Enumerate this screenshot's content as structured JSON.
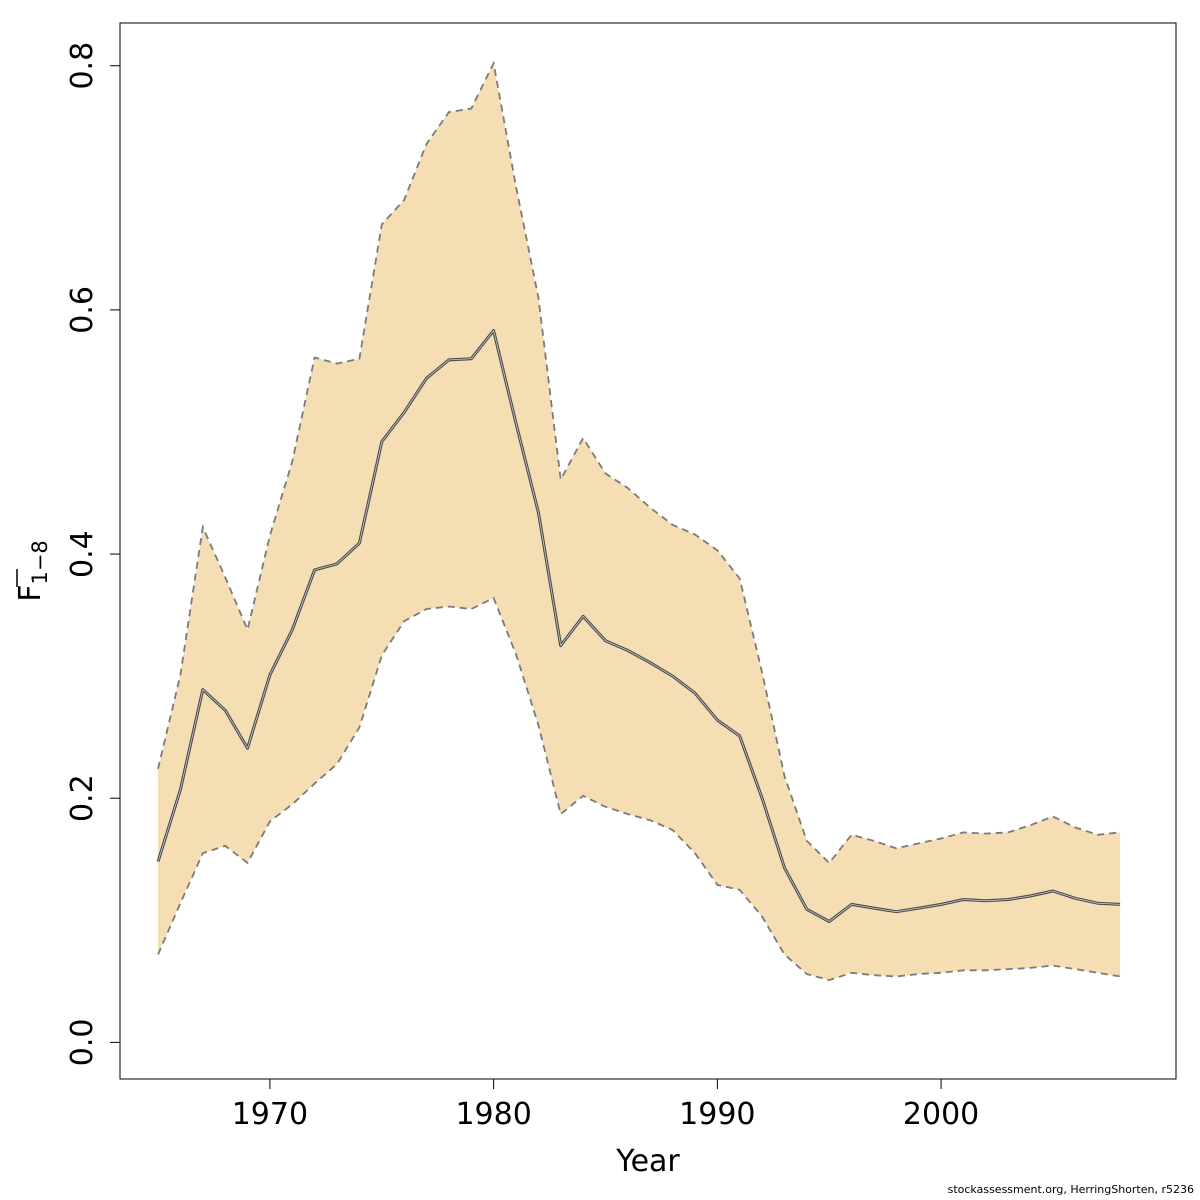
{
  "chart_data": {
    "type": "area",
    "xlabel": "Year",
    "ylabel_main": "F",
    "ylabel_sub": "1−8",
    "xlim": [
      1963.3,
      2010.5
    ],
    "ylim": [
      -0.03,
      0.835
    ],
    "xticks": [
      1970,
      1980,
      1990,
      2000
    ],
    "yticks": [
      0.0,
      0.2,
      0.4,
      0.6,
      0.8
    ],
    "ytick_labels": [
      "0.0",
      "0.2",
      "0.4",
      "0.6",
      "0.8"
    ],
    "band_color": "#f5deb3",
    "line_color": "#4a4a4a",
    "bound_color": "#7a7a7a",
    "grid": false,
    "x": [
      1965,
      1966,
      1967,
      1968,
      1969,
      1970,
      1971,
      1972,
      1973,
      1974,
      1975,
      1976,
      1977,
      1978,
      1979,
      1980,
      1981,
      1982,
      1983,
      1984,
      1985,
      1986,
      1987,
      1988,
      1989,
      1990,
      1991,
      1992,
      1993,
      1994,
      1995,
      1996,
      1997,
      1998,
      1999,
      2000,
      2001,
      2002,
      2003,
      2004,
      2005,
      2006,
      2007,
      2008
    ],
    "series": [
      {
        "values": [
          0.148,
          0.207,
          0.289,
          0.272,
          0.241,
          0.301,
          0.338,
          0.387,
          0.392,
          0.409,
          0.492,
          0.516,
          0.544,
          0.559,
          0.56,
          0.583,
          0.507,
          0.434,
          0.325,
          0.349,
          0.329,
          0.321,
          0.311,
          0.3,
          0.286,
          0.264,
          0.251,
          0.2,
          0.143,
          0.109,
          0.099,
          0.113,
          0.11,
          0.107,
          0.11,
          0.113,
          0.117,
          0.116,
          0.117,
          0.12,
          0.124,
          0.118,
          0.114,
          0.113
        ]
      },
      {
        "values": [
          0.224,
          0.301,
          0.422,
          0.381,
          0.338,
          0.415,
          0.476,
          0.561,
          0.556,
          0.56,
          0.67,
          0.69,
          0.736,
          0.762,
          0.765,
          0.802,
          0.701,
          0.61,
          0.461,
          0.495,
          0.466,
          0.454,
          0.438,
          0.424,
          0.416,
          0.403,
          0.38,
          0.303,
          0.218,
          0.165,
          0.147,
          0.17,
          0.165,
          0.159,
          0.163,
          0.167,
          0.172,
          0.171,
          0.172,
          0.178,
          0.185,
          0.176,
          0.17,
          0.172
        ]
      },
      {
        "values": [
          0.072,
          0.114,
          0.155,
          0.161,
          0.147,
          0.181,
          0.195,
          0.212,
          0.228,
          0.258,
          0.317,
          0.345,
          0.355,
          0.357,
          0.355,
          0.364,
          0.318,
          0.26,
          0.187,
          0.202,
          0.193,
          0.187,
          0.182,
          0.174,
          0.155,
          0.129,
          0.125,
          0.103,
          0.072,
          0.056,
          0.051,
          0.057,
          0.055,
          0.054,
          0.056,
          0.057,
          0.059,
          0.059,
          0.06,
          0.061,
          0.063,
          0.06,
          0.057,
          0.054
        ]
      }
    ]
  },
  "footer": "stockassessment.org, HerringShorten, r5236"
}
